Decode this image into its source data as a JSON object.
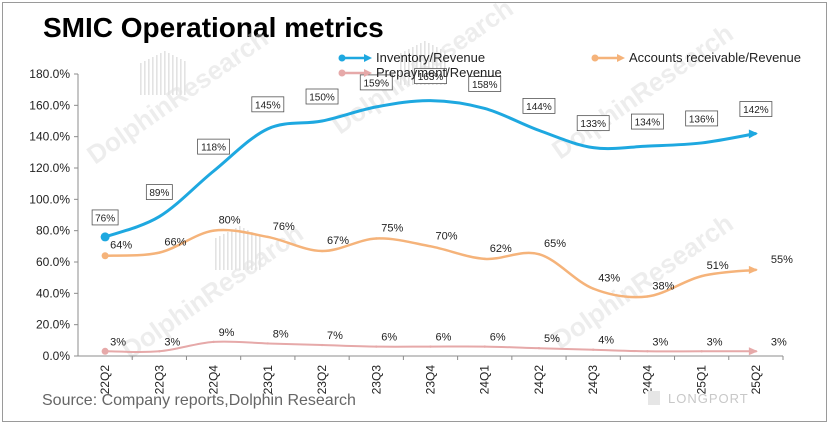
{
  "title": "SMIC Operational metrics",
  "source": "Source: Company reports,Dolphin Research",
  "watermark_text": "DolphinResearch",
  "logo_text": "LONGPORT",
  "chart_data": {
    "type": "line",
    "categories": [
      "22Q2",
      "22Q3",
      "22Q4",
      "23Q1",
      "23Q2",
      "23Q3",
      "23Q4",
      "24Q1",
      "24Q2",
      "24Q3",
      "24Q4",
      "25Q1",
      "25Q2"
    ],
    "ylim": [
      0,
      180
    ],
    "yticks": [
      0,
      20,
      40,
      60,
      80,
      100,
      120,
      140,
      160,
      180
    ],
    "ytick_labels": [
      "0.0%",
      "20.0%",
      "40.0%",
      "60.0%",
      "80.0%",
      "100.0%",
      "120.0%",
      "140.0%",
      "160.0%",
      "180.0%"
    ],
    "legend_position": "top",
    "grid": false,
    "series": [
      {
        "name": "Inventory/Revenue",
        "color": "#1ea8e0",
        "values": [
          76,
          89,
          118,
          145,
          150,
          159,
          163,
          158,
          144,
          133,
          134,
          136,
          142
        ],
        "labels": [
          "76%",
          "89%",
          "118%",
          "145%",
          "150%",
          "159%",
          "163%",
          "158%",
          "144%",
          "133%",
          "134%",
          "136%",
          "142%"
        ]
      },
      {
        "name": "Accounts receivable/Revenue",
        "color": "#f5b37a",
        "values": [
          64,
          66,
          80,
          76,
          67,
          75,
          70,
          62,
          65,
          43,
          38,
          51,
          55
        ],
        "labels": [
          "64%",
          "66%",
          "80%",
          "76%",
          "67%",
          "75%",
          "70%",
          "62%",
          "65%",
          "43%",
          "38%",
          "51%",
          "55%"
        ]
      },
      {
        "name": "Prepayment/Revenue",
        "color": "#e6a9a9",
        "values": [
          3,
          3,
          9,
          8,
          7,
          6,
          6,
          6,
          5,
          4,
          3,
          3,
          3
        ],
        "labels": [
          "3%",
          "3%",
          "9%",
          "8%",
          "7%",
          "6%",
          "6%",
          "6%",
          "5%",
          "4%",
          "3%",
          "3%",
          "3%"
        ]
      }
    ]
  }
}
